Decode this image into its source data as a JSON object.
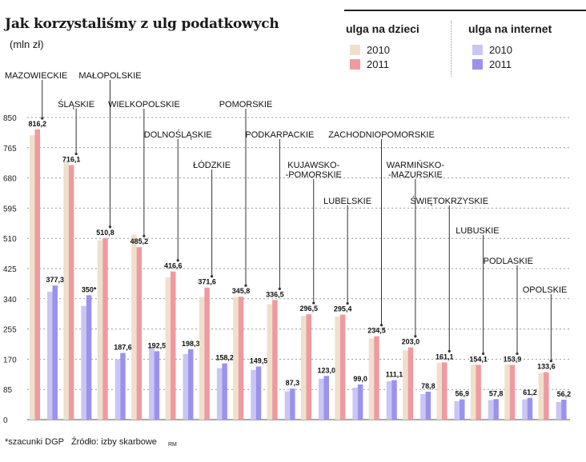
{
  "title": "Jak korzystaliśmy z ulg podatkowych",
  "subtitle": "(mln zł)",
  "legend": {
    "group1": {
      "title": "ulga na dzieci",
      "items": [
        {
          "label": "2010",
          "color": "#efe0cc"
        },
        {
          "label": "2011",
          "color": "#ef9aa0"
        }
      ]
    },
    "group2": {
      "title": "ulga na internet",
      "items": [
        {
          "label": "2010",
          "color": "#c9c6f3"
        },
        {
          "label": "2011",
          "color": "#9b92ee"
        }
      ]
    }
  },
  "footer": {
    "note": "*szacunki DGP   Źródło: izby skarbowe",
    "credit": "RM"
  },
  "chart_data": {
    "type": "bar",
    "ylim": [
      0,
      850
    ],
    "yticks": [
      0,
      85,
      170,
      255,
      340,
      425,
      510,
      595,
      680,
      765,
      850
    ],
    "grid": true,
    "categories": [
      "MAZOWIECKIE",
      "ŚLĄSKIE",
      "MAŁOPOLSKIE",
      "WIELKOPOLSKIE",
      "DOLNOŚLĄSKIE",
      "ŁÓDZKIE",
      "POMORSKIE",
      "PODKARPACKIE",
      "KUJAWSKO-\n-POMORSKIE",
      "LUBELSKIE",
      "ZACHODNIOPOMORSKIE",
      "WARMIŃSKO-\n-MAZURSKIE",
      "ŚWIĘTOKRZYSKIE",
      "LUBUSKIE",
      "PODLASKIE",
      "OPOLSKIE"
    ],
    "series": [
      {
        "name": "ulga na dzieci 2010",
        "color": "#efe0cc",
        "values": [
          800,
          725,
          505,
          520,
          400,
          345,
          345,
          325,
          292,
          290,
          228,
          195,
          160,
          155,
          155,
          132
        ]
      },
      {
        "name": "ulga na dzieci 2011",
        "color": "#ef9aa0",
        "values": [
          816.2,
          716.1,
          510.8,
          485.2,
          416.6,
          371.6,
          345.8,
          336.5,
          296.5,
          295.4,
          234.5,
          203.0,
          161.1,
          154.1,
          153.9,
          133.6
        ]
      },
      {
        "name": "ulga na internet 2010",
        "color": "#c9c6f3",
        "values": [
          360,
          320,
          170,
          205,
          185,
          145,
          140,
          80,
          115,
          90,
          108,
          72,
          52,
          55,
          57,
          50
        ]
      },
      {
        "name": "ulga na internet 2011",
        "color": "#9b92ee",
        "values": [
          377.3,
          350,
          187.6,
          192.5,
          198.3,
          158.2,
          149.5,
          87.3,
          123.0,
          99.0,
          111.1,
          78.8,
          56.9,
          57.8,
          61.2,
          56.2
        ]
      }
    ],
    "value_labels_dzieci": [
      "816,2",
      "716,1",
      "510,8",
      "485,2",
      "416,6",
      "371,6",
      "345,8",
      "336,5",
      "296,5",
      "295,4",
      "234,5",
      "203,0",
      "161,1",
      "154,1",
      "153,9",
      "133,6"
    ],
    "value_labels_internet": [
      "377,3",
      "350*",
      "187,6",
      "192,5",
      "198,3",
      "158,2",
      "149,5",
      "87,3",
      "123,0",
      "99,0",
      "111,1",
      "78,8",
      "56,9",
      "57,8",
      "61,2",
      "56,2"
    ]
  }
}
